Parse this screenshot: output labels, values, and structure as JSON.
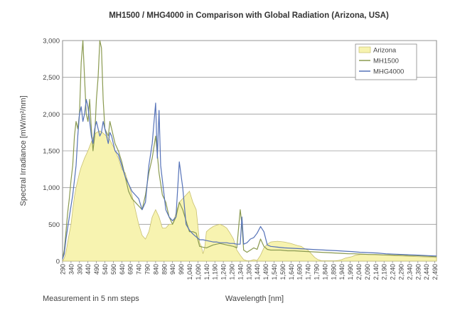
{
  "chart_data": {
    "type": "area",
    "title": "MH1500 / MHG4000 in Comparison with Global Radiation (Arizona, USA)",
    "xlabel": "Wavelength [nm]",
    "xlabel_note": "Measurement in 5 nm steps",
    "ylabel": "Spectral Irradiance [mW/m²/nm]",
    "xlim": [
      290,
      2500
    ],
    "ylim": [
      0,
      3000
    ],
    "x_ticks": [
      290,
      340,
      390,
      440,
      490,
      540,
      590,
      640,
      690,
      740,
      790,
      840,
      890,
      940,
      990,
      1040,
      1090,
      1140,
      1190,
      1240,
      1290,
      1340,
      1390,
      1440,
      1490,
      1540,
      1590,
      1640,
      1690,
      1740,
      1790,
      1840,
      1890,
      1940,
      1990,
      2040,
      2090,
      2140,
      2190,
      2240,
      2290,
      2340,
      2390,
      2440,
      2490
    ],
    "x_tick_labels": [
      "290",
      "340",
      "390",
      "440",
      "490",
      "540",
      "590",
      "640",
      "690",
      "740",
      "790",
      "840",
      "890",
      "940",
      "990",
      "1,040",
      "1,090",
      "1,140",
      "1,190",
      "1,240",
      "1,290",
      "1,340",
      "1,390",
      "1,440",
      "1,490",
      "1,540",
      "1,590",
      "1,640",
      "1,690",
      "1,740",
      "1,790",
      "1,840",
      "1,890",
      "1,940",
      "1,990",
      "2,040",
      "2,090",
      "2,140",
      "2,190",
      "2,240",
      "2,290",
      "2,340",
      "2,390",
      "2,440",
      "2,490"
    ],
    "y_ticks": [
      0,
      500,
      1000,
      1500,
      2000,
      2500,
      3000
    ],
    "y_tick_labels": [
      "0",
      "500",
      "1,000",
      "1,500",
      "2,000",
      "2,500",
      "3,000"
    ],
    "grid": "horizontal",
    "legend_position": "top-right",
    "series": [
      {
        "name": "Arizona",
        "style": "area",
        "color": "#f7f3b0",
        "stroke": "#c8c070",
        "x": [
          290,
          300,
          310,
          320,
          330,
          340,
          350,
          360,
          370,
          380,
          390,
          400,
          410,
          420,
          430,
          440,
          450,
          460,
          470,
          480,
          490,
          500,
          510,
          520,
          530,
          540,
          550,
          560,
          570,
          580,
          590,
          600,
          620,
          640,
          660,
          680,
          700,
          720,
          740,
          760,
          780,
          800,
          820,
          840,
          860,
          880,
          900,
          920,
          940,
          960,
          980,
          1000,
          1020,
          1040,
          1060,
          1080,
          1100,
          1110,
          1120,
          1130,
          1140,
          1160,
          1180,
          1200,
          1220,
          1240,
          1260,
          1280,
          1300,
          1320,
          1340,
          1360,
          1380,
          1400,
          1420,
          1440,
          1460,
          1480,
          1500,
          1520,
          1560,
          1600,
          1640,
          1680,
          1700,
          1720,
          1740,
          1760,
          1780,
          1800,
          1820,
          1840,
          1860,
          1880,
          1900,
          1920,
          1940,
          1960,
          1980,
          2000,
          2020,
          2050,
          2100,
          2150,
          2200,
          2250,
          2300,
          2350,
          2400,
          2450,
          2500
        ],
        "y": [
          0,
          40,
          120,
          250,
          380,
          500,
          700,
          880,
          1000,
          1100,
          1200,
          1280,
          1340,
          1400,
          1450,
          1500,
          1560,
          1620,
          1680,
          1720,
          1750,
          1760,
          1770,
          1760,
          1740,
          1720,
          1700,
          1680,
          1650,
          1600,
          1560,
          1500,
          1400,
          1250,
          1200,
          1050,
          900,
          700,
          500,
          350,
          300,
          400,
          600,
          700,
          600,
          450,
          450,
          500,
          500,
          650,
          800,
          850,
          900,
          950,
          800,
          700,
          250,
          200,
          100,
          180,
          400,
          440,
          470,
          490,
          500,
          480,
          450,
          380,
          300,
          150,
          80,
          20,
          5,
          5,
          20,
          10,
          80,
          180,
          230,
          260,
          270,
          260,
          240,
          210,
          200,
          170,
          150,
          100,
          50,
          20,
          5,
          5,
          5,
          5,
          5,
          10,
          20,
          40,
          50,
          60,
          80,
          90,
          90,
          85,
          80,
          75,
          70,
          65,
          60,
          55,
          50
        ]
      },
      {
        "name": "MH1500",
        "style": "line",
        "color": "#8a9a50",
        "x": [
          290,
          300,
          310,
          320,
          330,
          340,
          350,
          360,
          370,
          380,
          390,
          400,
          410,
          420,
          430,
          440,
          450,
          460,
          470,
          480,
          490,
          500,
          510,
          520,
          530,
          540,
          550,
          560,
          570,
          580,
          590,
          600,
          620,
          640,
          660,
          680,
          700,
          720,
          740,
          760,
          780,
          800,
          820,
          840,
          860,
          880,
          900,
          920,
          940,
          960,
          980,
          1000,
          1020,
          1040,
          1060,
          1080,
          1100,
          1120,
          1140,
          1160,
          1180,
          1200,
          1220,
          1240,
          1260,
          1280,
          1300,
          1320,
          1340,
          1350,
          1360,
          1380,
          1400,
          1420,
          1440,
          1460,
          1480,
          1500,
          1520,
          1540,
          1580,
          1620,
          1660,
          1700,
          1740,
          1780,
          1820,
          1860,
          1900,
          1940,
          1980,
          2020,
          2060,
          2100,
          2140,
          2180,
          2220,
          2260,
          2300,
          2340,
          2380,
          2420,
          2460,
          2500
        ],
        "y": [
          30,
          150,
          400,
          650,
          850,
          1100,
          1300,
          1700,
          1900,
          1800,
          2000,
          2700,
          3000,
          2500,
          2000,
          1900,
          2200,
          1800,
          1500,
          1700,
          2200,
          2500,
          3000,
          2900,
          2200,
          1800,
          1750,
          1700,
          1900,
          1800,
          1700,
          1600,
          1500,
          1350,
          1150,
          950,
          850,
          800,
          750,
          700,
          900,
          1200,
          1400,
          1700,
          1200,
          900,
          800,
          600,
          500,
          600,
          800,
          700,
          550,
          400,
          400,
          380,
          200,
          190,
          180,
          200,
          220,
          230,
          240,
          230,
          220,
          210,
          200,
          180,
          700,
          500,
          150,
          120,
          150,
          180,
          160,
          300,
          200,
          160,
          150,
          150,
          150,
          140,
          140,
          135,
          130,
          125,
          120,
          115,
          110,
          105,
          100,
          100,
          95,
          90,
          90,
          85,
          85,
          80,
          80,
          75,
          75,
          70,
          65,
          60
        ]
      },
      {
        "name": "MHG4000",
        "style": "line",
        "color": "#5572b8",
        "x": [
          290,
          300,
          310,
          320,
          330,
          340,
          350,
          360,
          370,
          380,
          390,
          400,
          410,
          420,
          430,
          440,
          450,
          460,
          470,
          480,
          490,
          500,
          510,
          520,
          530,
          540,
          550,
          560,
          570,
          580,
          590,
          600,
          620,
          640,
          660,
          680,
          700,
          720,
          740,
          760,
          780,
          800,
          820,
          840,
          850,
          860,
          870,
          880,
          890,
          900,
          920,
          940,
          960,
          980,
          1000,
          1020,
          1040,
          1060,
          1080,
          1100,
          1120,
          1140,
          1160,
          1180,
          1200,
          1220,
          1240,
          1260,
          1280,
          1300,
          1320,
          1340,
          1350,
          1360,
          1380,
          1400,
          1420,
          1440,
          1460,
          1480,
          1500,
          1520,
          1560,
          1600,
          1640,
          1680,
          1720,
          1760,
          1800,
          1840,
          1880,
          1920,
          1960,
          2000,
          2050,
          2100,
          2150,
          2200,
          2250,
          2300,
          2350,
          2400,
          2450,
          2500
        ],
        "y": [
          30,
          100,
          300,
          450,
          600,
          750,
          900,
          1100,
          1300,
          1700,
          2000,
          2100,
          1900,
          2000,
          2200,
          2100,
          1900,
          1700,
          1600,
          1800,
          1900,
          1800,
          1700,
          1750,
          1900,
          1800,
          1700,
          1600,
          1750,
          1700,
          1600,
          1500,
          1450,
          1300,
          1150,
          1050,
          950,
          900,
          850,
          700,
          800,
          1300,
          1600,
          2150,
          1400,
          2050,
          1300,
          1100,
          900,
          700,
          600,
          550,
          600,
          1350,
          1000,
          500,
          420,
          370,
          330,
          290,
          290,
          280,
          270,
          260,
          260,
          250,
          250,
          250,
          240,
          240,
          230,
          230,
          600,
          230,
          250,
          300,
          320,
          380,
          470,
          400,
          220,
          200,
          190,
          180,
          175,
          170,
          165,
          160,
          155,
          150,
          145,
          140,
          135,
          130,
          120,
          115,
          110,
          100,
          95,
          90,
          85,
          80,
          75,
          70
        ]
      }
    ]
  }
}
